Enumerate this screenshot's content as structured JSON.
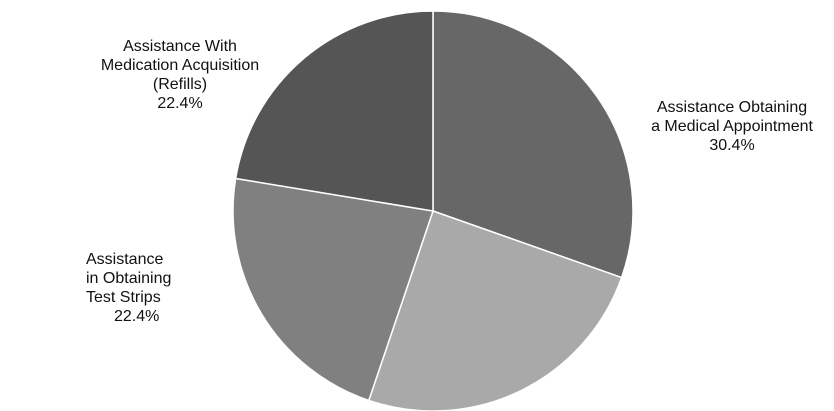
{
  "chart_data": {
    "type": "pie",
    "title": "",
    "start_angle_deg": 0,
    "direction": "clockwise",
    "slices": [
      {
        "label_lines": [
          "Assistance Obtaining",
          "a Medical Appointment"
        ],
        "value": 30.4,
        "value_text": "30.4%",
        "color": "#676767"
      },
      {
        "label_lines": [],
        "value": 24.8,
        "value_text": "",
        "color": "#a9a9a9"
      },
      {
        "label_lines": [
          "Assistance",
          "in Obtaining",
          "Test Strips"
        ],
        "value": 22.4,
        "value_text": "22.4%",
        "color": "#808080"
      },
      {
        "label_lines": [
          "Assistance With",
          "Medication Acquisition",
          "(Refills)"
        ],
        "value": 22.4,
        "value_text": "22.4%",
        "color": "#555555"
      }
    ]
  }
}
